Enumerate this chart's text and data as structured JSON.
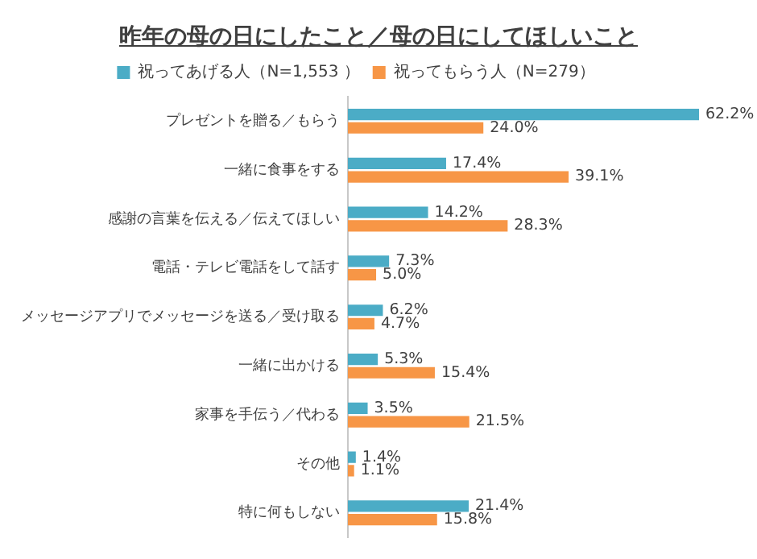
{
  "chart_data": {
    "type": "bar",
    "orientation": "horizontal",
    "title": "昨年の母の日にしたこと／母の日にしてほしいこと",
    "categories": [
      "プレゼントを贈る／もらう",
      "一緒に食事をする",
      "感謝の言葉を伝える／伝えてほしい",
      "電話・テレビ電話をして話す",
      "メッセージアプリでメッセージを送る／受け取る",
      "一緒に出かける",
      "家事を手伝う／代わる",
      "その他",
      "特に何もしない"
    ],
    "series": [
      {
        "name": "祝ってあげる人（N=1,553 ）",
        "color": "#4bacc6",
        "values": [
          62.2,
          17.4,
          14.2,
          7.3,
          6.2,
          5.3,
          3.5,
          1.4,
          21.4
        ],
        "value_labels": [
          "62.2%",
          "17.4%",
          "14.2%",
          "7.3%",
          "6.2%",
          "5.3%",
          "3.5%",
          "1.4%",
          "21.4%"
        ]
      },
      {
        "name": "祝ってもらう人（N=279）",
        "color": "#f79646",
        "values": [
          24.0,
          39.1,
          28.3,
          5.0,
          4.7,
          15.4,
          21.5,
          1.1,
          15.8
        ],
        "value_labels": [
          "24.0%",
          "39.1%",
          "28.3%",
          "5.0%",
          "4.7%",
          "15.4%",
          "21.5%",
          "1.1%",
          "15.8%"
        ]
      }
    ],
    "legend": "top",
    "grid": false
  }
}
